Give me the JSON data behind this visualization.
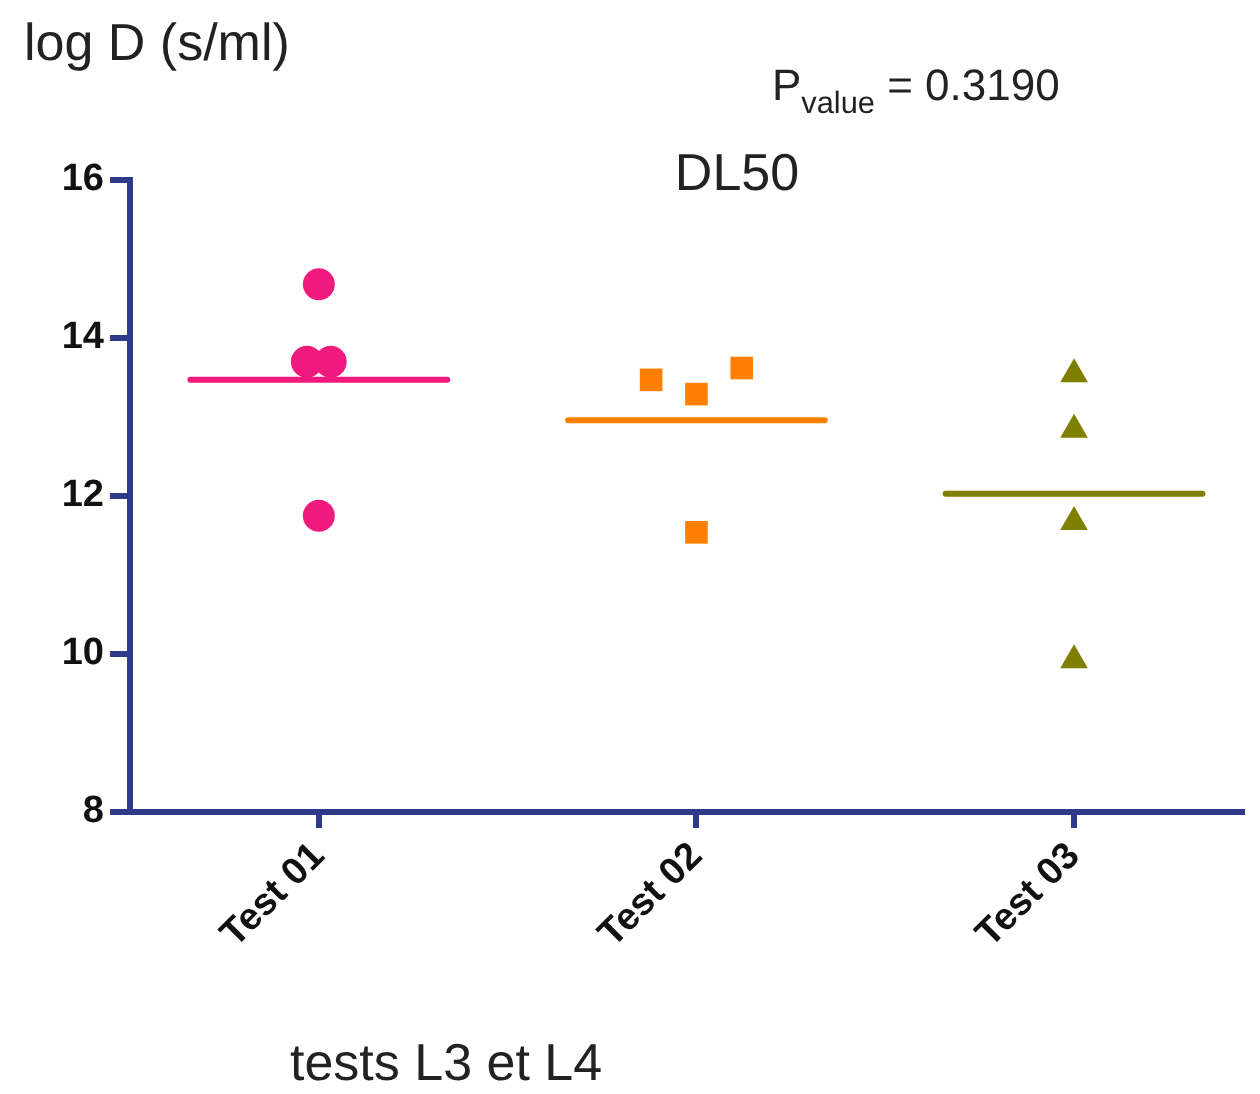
{
  "chart_data": {
    "type": "scatter",
    "title": "DL50",
    "ylabel": "log D (s/ml)",
    "xlabel": "tests L3 et L4",
    "annotations": [
      "P$_{value}$ = 0.3190"
    ],
    "categories": [
      "Test 01",
      "Test 02",
      "Test 03"
    ],
    "ylim": [
      8,
      16
    ],
    "yticks": [
      8,
      10,
      12,
      14,
      16
    ],
    "grid": false,
    "legend": false,
    "series": [
      {
        "marker": "circle",
        "color": "#f0197d",
        "x": [
          "Test 01",
          "Test 01",
          "Test 01",
          "Test 01"
        ],
        "values": [
          14.68,
          13.7,
          13.7,
          11.75
        ]
      },
      {
        "marker": "square",
        "color": "#ff8000",
        "x": [
          "Test 02",
          "Test 02",
          "Test 02",
          "Test 02"
        ],
        "values": [
          13.47,
          13.29,
          13.62,
          11.54
        ]
      },
      {
        "marker": "triangle",
        "color": "#808000",
        "x": [
          "Test 03",
          "Test 03",
          "Test 03",
          "Test 03"
        ],
        "values": [
          13.54,
          12.84,
          11.67,
          9.92
        ]
      },
      {
        "type": "box",
        "colors": [
          "#f0197d",
          "#ff8000",
          "#808000"
        ],
        "boxes": [
          {
            "low": 13.47,
            "q1": 13.47,
            "median": 13.47,
            "q3": 13.47,
            "high": 13.47
          },
          {
            "low": 12.96,
            "q1": 12.96,
            "median": 12.96,
            "q3": 12.96,
            "high": 12.96
          },
          {
            "low": 12.03,
            "q1": 12.03,
            "median": 12.03,
            "q3": 12.03,
            "high": 12.03
          }
        ]
      }
    ]
  }
}
